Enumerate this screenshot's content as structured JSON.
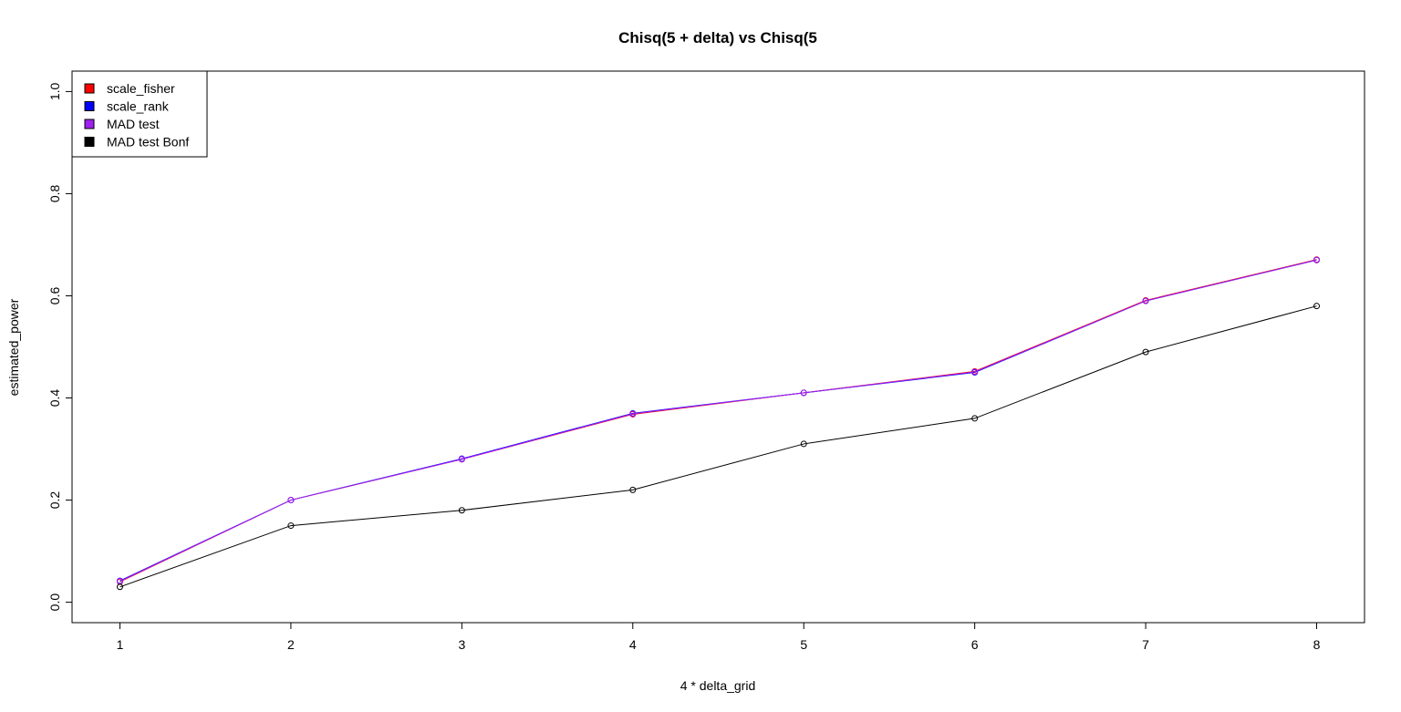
{
  "chart_data": {
    "type": "line",
    "title": "Chisq(5 + delta) vs Chisq(5",
    "xlabel": "4 * delta_grid",
    "ylabel": "estimated_power",
    "xlim": [
      0.72,
      8.28
    ],
    "ylim": [
      -0.04,
      1.04
    ],
    "x": [
      1,
      2,
      3,
      4,
      5,
      6,
      7,
      8
    ],
    "xticks": [
      1,
      2,
      3,
      4,
      5,
      6,
      7,
      8
    ],
    "yticks": [
      0.0,
      0.2,
      0.4,
      0.6,
      0.8,
      1.0
    ],
    "ytick_labels": [
      "0.0",
      "0.2",
      "0.4",
      "0.6",
      "0.8",
      "1.0"
    ],
    "grid": false,
    "legend_position": "top-left",
    "series": [
      {
        "name": "scale_fisher",
        "color": "#ff0000",
        "values": [
          0.04,
          0.2,
          0.28,
          0.368,
          0.41,
          0.452,
          0.591,
          0.671
        ]
      },
      {
        "name": "scale_rank",
        "color": "#0000ff",
        "values": [
          0.042,
          0.2,
          0.281,
          0.37,
          0.41,
          0.45,
          0.59,
          0.67
        ]
      },
      {
        "name": "MAD test",
        "color": "#a020f0",
        "values": [
          0.041,
          0.2,
          0.28,
          0.369,
          0.41,
          0.451,
          0.59,
          0.67
        ]
      },
      {
        "name": "MAD test Bonf",
        "color": "#000000",
        "values": [
          0.03,
          0.15,
          0.18,
          0.22,
          0.31,
          0.36,
          0.49,
          0.58
        ]
      }
    ]
  }
}
